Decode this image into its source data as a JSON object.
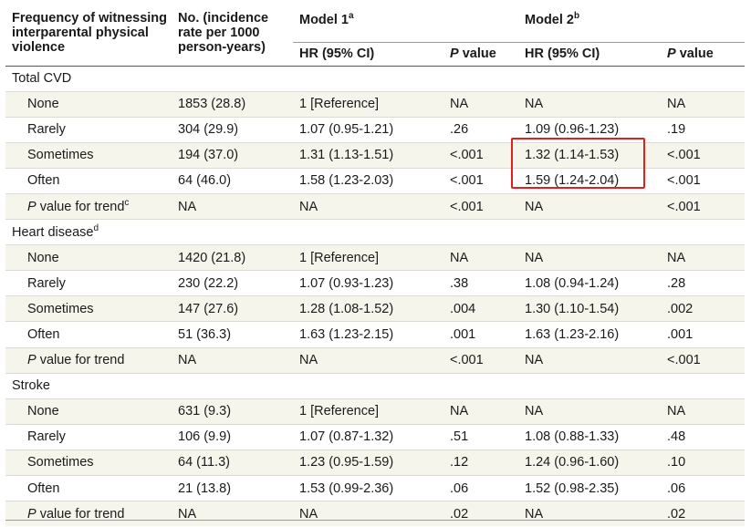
{
  "columns": {
    "freq": "Frequency of witnessing interparental physical violence",
    "no": "No. (incidence rate per 1000 person-years)",
    "model1": "Model 1",
    "model1_sup": "a",
    "model2": "Model 2",
    "model2_sup": "b",
    "hr1": "HR (95% CI)",
    "p1_italic": "P",
    "p1_rest": " value",
    "hr2": "HR (95% CI)",
    "p2_italic": "P",
    "p2_rest": " value"
  },
  "sections": [
    {
      "title": "Total CVD",
      "title_sup": "",
      "rows": [
        {
          "label": "None",
          "label_italic": "",
          "label_sup": "",
          "no": "1853 (28.8)",
          "hr1": "1 [Reference]",
          "p1": "NA",
          "hr2": "NA",
          "p2": "NA"
        },
        {
          "label": "Rarely",
          "label_italic": "",
          "label_sup": "",
          "no": "304 (29.9)",
          "hr1": "1.07 (0.95-1.21)",
          "p1": ".26",
          "hr2": "1.09 (0.96-1.23)",
          "p2": ".19"
        },
        {
          "label": "Sometimes",
          "label_italic": "",
          "label_sup": "",
          "no": "194 (37.0)",
          "hr1": "1.31 (1.13-1.51)",
          "p1": "<.001",
          "hr2": "1.32 (1.14-1.53)",
          "p2": "<.001"
        },
        {
          "label": "Often",
          "label_italic": "",
          "label_sup": "",
          "no": "64 (46.0)",
          "hr1": "1.58 (1.23-2.03)",
          "p1": "<.001",
          "hr2": "1.59 (1.24-2.04)",
          "p2": "<.001"
        },
        {
          "label": " value for trend",
          "label_italic": "P",
          "label_sup": "c",
          "no": "NA",
          "hr1": "NA",
          "p1": "<.001",
          "hr2": "NA",
          "p2": "<.001"
        }
      ]
    },
    {
      "title": "Heart disease",
      "title_sup": "d",
      "rows": [
        {
          "label": "None",
          "label_italic": "",
          "label_sup": "",
          "no": "1420 (21.8)",
          "hr1": "1 [Reference]",
          "p1": "NA",
          "hr2": "NA",
          "p2": "NA"
        },
        {
          "label": "Rarely",
          "label_italic": "",
          "label_sup": "",
          "no": "230 (22.2)",
          "hr1": "1.07 (0.93-1.23)",
          "p1": ".38",
          "hr2": "1.08 (0.94-1.24)",
          "p2": ".28"
        },
        {
          "label": "Sometimes",
          "label_italic": "",
          "label_sup": "",
          "no": "147 (27.6)",
          "hr1": "1.28 (1.08-1.52)",
          "p1": ".004",
          "hr2": "1.30 (1.10-1.54)",
          "p2": ".002"
        },
        {
          "label": "Often",
          "label_italic": "",
          "label_sup": "",
          "no": "51 (36.3)",
          "hr1": "1.63 (1.23-2.15)",
          "p1": ".001",
          "hr2": "1.63 (1.23-2.16)",
          "p2": ".001"
        },
        {
          "label": " value for trend",
          "label_italic": "P",
          "label_sup": "",
          "no": "NA",
          "hr1": "NA",
          "p1": "<.001",
          "hr2": "NA",
          "p2": "<.001"
        }
      ]
    },
    {
      "title": "Stroke",
      "title_sup": "",
      "rows": [
        {
          "label": "None",
          "label_italic": "",
          "label_sup": "",
          "no": "631 (9.3)",
          "hr1": "1 [Reference]",
          "p1": "NA",
          "hr2": "NA",
          "p2": "NA"
        },
        {
          "label": "Rarely",
          "label_italic": "",
          "label_sup": "",
          "no": "106 (9.9)",
          "hr1": "1.07 (0.87-1.32)",
          "p1": ".51",
          "hr2": "1.08 (0.88-1.33)",
          "p2": ".48"
        },
        {
          "label": "Sometimes",
          "label_italic": "",
          "label_sup": "",
          "no": "64 (11.3)",
          "hr1": "1.23 (0.95-1.59)",
          "p1": ".12",
          "hr2": "1.24 (0.96-1.60)",
          "p2": ".10"
        },
        {
          "label": "Often",
          "label_italic": "",
          "label_sup": "",
          "no": "21 (13.8)",
          "hr1": "1.53 (0.99-2.36)",
          "p1": ".06",
          "hr2": "1.52 (0.98-2.35)",
          "p2": ".06"
        },
        {
          "label": " value for trend",
          "label_italic": "P",
          "label_sup": "",
          "no": "NA",
          "hr1": "NA",
          "p1": ".02",
          "hr2": "NA",
          "p2": ".02"
        }
      ]
    }
  ],
  "colors": {
    "shade": "#f5f5ec",
    "highlight": "#e0201c",
    "text": "#1a1a1a"
  }
}
